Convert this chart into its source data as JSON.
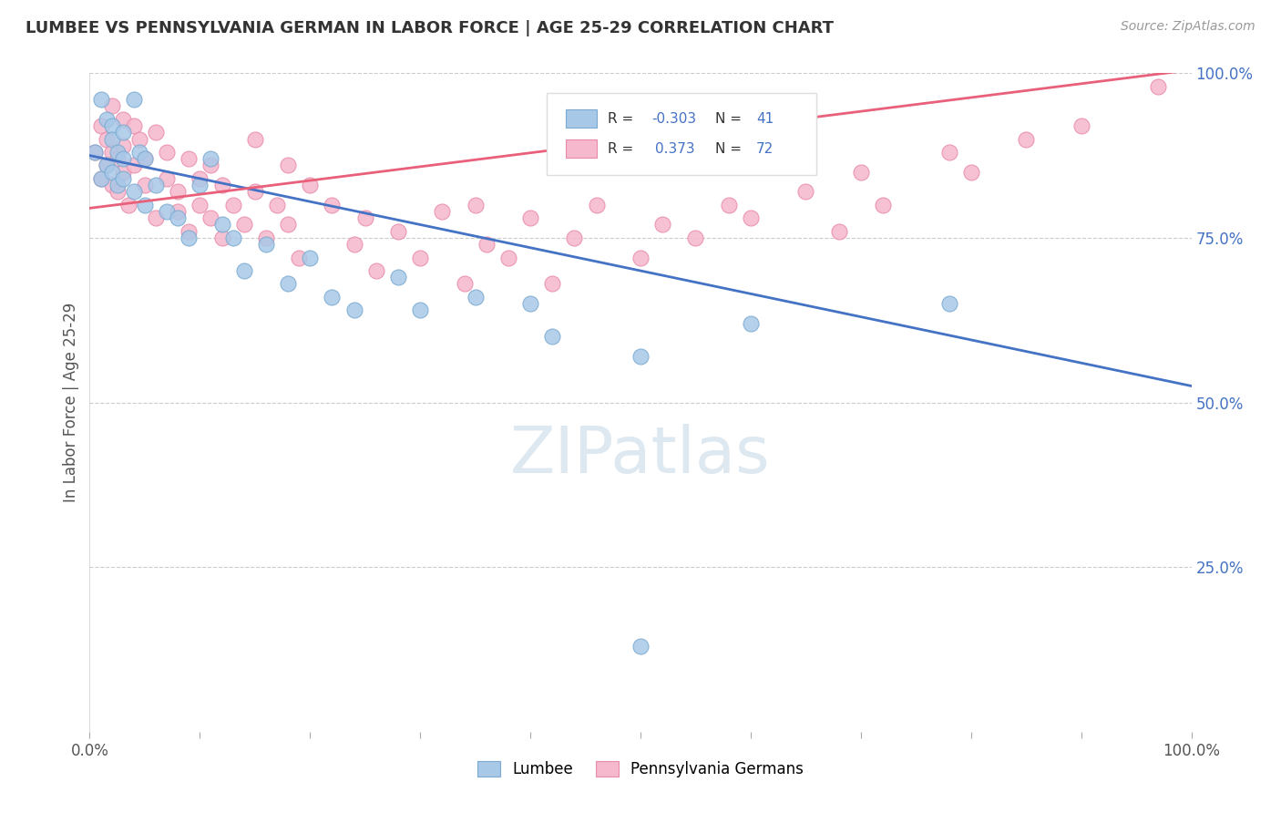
{
  "title": "LUMBEE VS PENNSYLVANIA GERMAN IN LABOR FORCE | AGE 25-29 CORRELATION CHART",
  "source_text": "Source: ZipAtlas.com",
  "ylabel": "In Labor Force | Age 25-29",
  "xlim": [
    0,
    1
  ],
  "ylim": [
    0,
    1
  ],
  "lumbee_R": -0.303,
  "lumbee_N": 41,
  "penn_R": 0.373,
  "penn_N": 72,
  "lumbee_color": "#a8c8e8",
  "penn_color": "#f5b8cc",
  "lumbee_edge_color": "#7aaad0",
  "penn_edge_color": "#e88aaa",
  "lumbee_line_color": "#4472c4",
  "penn_line_color": "#e8607a",
  "background_color": "#ffffff",
  "grid_color": "#cccccc",
  "title_color": "#333333",
  "source_color": "#999999",
  "legend_value_color": "#4472c4",
  "watermark_text": "ZIPatlas",
  "watermark_color": "#dde8f0",
  "lumbee_x": [
    0.005,
    0.01,
    0.01,
    0.015,
    0.015,
    0.02,
    0.02,
    0.02,
    0.025,
    0.025,
    0.03,
    0.03,
    0.03,
    0.04,
    0.04,
    0.045,
    0.05,
    0.05,
    0.06,
    0.07,
    0.08,
    0.09,
    0.1,
    0.11,
    0.12,
    0.13,
    0.14,
    0.16,
    0.18,
    0.2,
    0.22,
    0.24,
    0.28,
    0.3,
    0.35,
    0.4,
    0.42,
    0.5,
    0.6,
    0.78,
    0.5
  ],
  "lumbee_y": [
    0.88,
    0.96,
    0.84,
    0.93,
    0.86,
    0.92,
    0.9,
    0.85,
    0.88,
    0.83,
    0.91,
    0.87,
    0.84,
    0.96,
    0.82,
    0.88,
    0.87,
    0.8,
    0.83,
    0.79,
    0.78,
    0.75,
    0.83,
    0.87,
    0.77,
    0.75,
    0.7,
    0.74,
    0.68,
    0.72,
    0.66,
    0.64,
    0.69,
    0.64,
    0.66,
    0.65,
    0.6,
    0.57,
    0.62,
    0.65,
    0.13
  ],
  "penn_x": [
    0.005,
    0.01,
    0.01,
    0.015,
    0.015,
    0.02,
    0.02,
    0.02,
    0.025,
    0.025,
    0.03,
    0.03,
    0.03,
    0.035,
    0.04,
    0.04,
    0.045,
    0.05,
    0.05,
    0.06,
    0.06,
    0.07,
    0.07,
    0.08,
    0.08,
    0.09,
    0.09,
    0.1,
    0.1,
    0.11,
    0.11,
    0.12,
    0.12,
    0.13,
    0.14,
    0.15,
    0.15,
    0.16,
    0.17,
    0.18,
    0.18,
    0.19,
    0.2,
    0.22,
    0.24,
    0.25,
    0.26,
    0.28,
    0.3,
    0.32,
    0.34,
    0.35,
    0.36,
    0.38,
    0.4,
    0.42,
    0.44,
    0.46,
    0.5,
    0.52,
    0.55,
    0.58,
    0.6,
    0.65,
    0.68,
    0.7,
    0.72,
    0.78,
    0.8,
    0.85,
    0.9,
    0.97
  ],
  "penn_y": [
    0.88,
    0.92,
    0.84,
    0.9,
    0.86,
    0.95,
    0.83,
    0.88,
    0.87,
    0.82,
    0.93,
    0.89,
    0.85,
    0.8,
    0.92,
    0.86,
    0.9,
    0.87,
    0.83,
    0.91,
    0.78,
    0.88,
    0.84,
    0.82,
    0.79,
    0.87,
    0.76,
    0.84,
    0.8,
    0.78,
    0.86,
    0.75,
    0.83,
    0.8,
    0.77,
    0.82,
    0.9,
    0.75,
    0.8,
    0.77,
    0.86,
    0.72,
    0.83,
    0.8,
    0.74,
    0.78,
    0.7,
    0.76,
    0.72,
    0.79,
    0.68,
    0.8,
    0.74,
    0.72,
    0.78,
    0.68,
    0.75,
    0.8,
    0.72,
    0.77,
    0.75,
    0.8,
    0.78,
    0.82,
    0.76,
    0.85,
    0.8,
    0.88,
    0.85,
    0.9,
    0.92,
    0.98
  ],
  "lum_line_x0": 0.0,
  "lum_line_y0": 0.875,
  "lum_line_x1": 1.0,
  "lum_line_y1": 0.525,
  "penn_line_x0": 0.0,
  "penn_line_y0": 0.795,
  "penn_line_x1": 1.0,
  "penn_line_y1": 1.005
}
